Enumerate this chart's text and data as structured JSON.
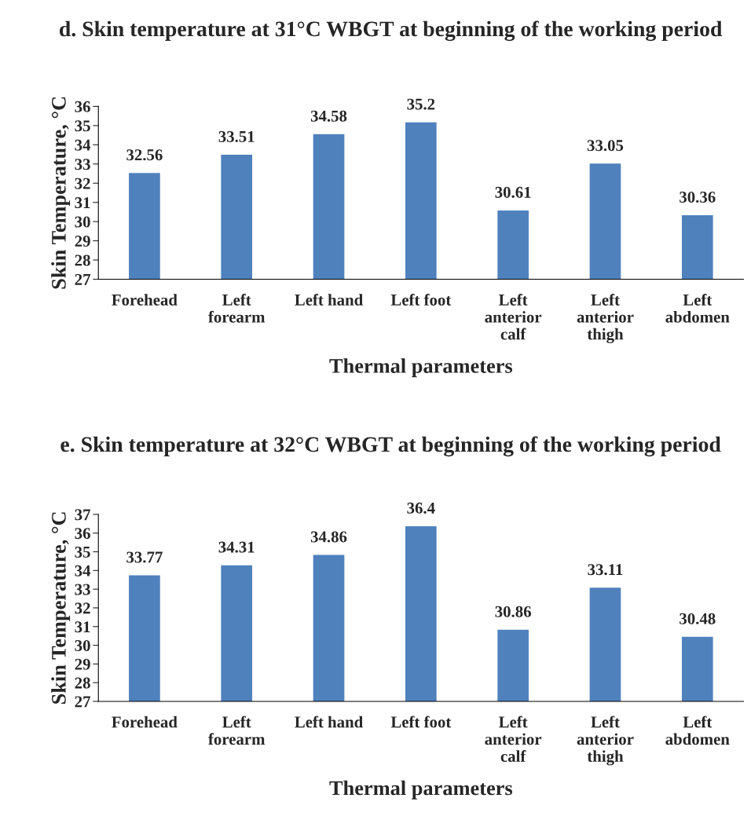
{
  "chart_data": [
    {
      "type": "bar",
      "title": "d. Skin temperature at 31°C WBGT at beginning of the working period",
      "xlabel": "Thermal parameters",
      "ylabel": "Skin Temperature, °C",
      "categories": [
        "Forehead",
        "Left\nforearm",
        "Left hand",
        "Left foot",
        "Left\nanterior\ncalf",
        "Left\nanterior\nthigh",
        "Left\nabdomen"
      ],
      "values": [
        32.56,
        33.51,
        34.58,
        35.2,
        30.61,
        33.05,
        30.36
      ],
      "color": "#4f81bd",
      "ylim": [
        27,
        36
      ],
      "yticks": [
        27,
        28,
        29,
        30,
        31,
        32,
        33,
        34,
        35,
        36
      ],
      "grid": false,
      "data_labels": true
    },
    {
      "type": "bar",
      "title": "e. Skin temperature at 32°C WBGT at beginning of the working period",
      "xlabel": "Thermal parameters",
      "ylabel": "Skin Temperature, °C",
      "categories": [
        "Forehead",
        "Left\nforearm",
        "Left hand",
        "Left foot",
        "Left\nanterior\ncalf",
        "Left\nanterior\nthigh",
        "Left\nabdomen"
      ],
      "values": [
        33.77,
        34.31,
        34.86,
        36.4,
        30.86,
        33.11,
        30.48
      ],
      "color": "#4f81bd",
      "ylim": [
        27,
        37
      ],
      "yticks": [
        27,
        28,
        29,
        30,
        31,
        32,
        33,
        34,
        35,
        36,
        37
      ],
      "grid": false,
      "data_labels": true
    }
  ]
}
